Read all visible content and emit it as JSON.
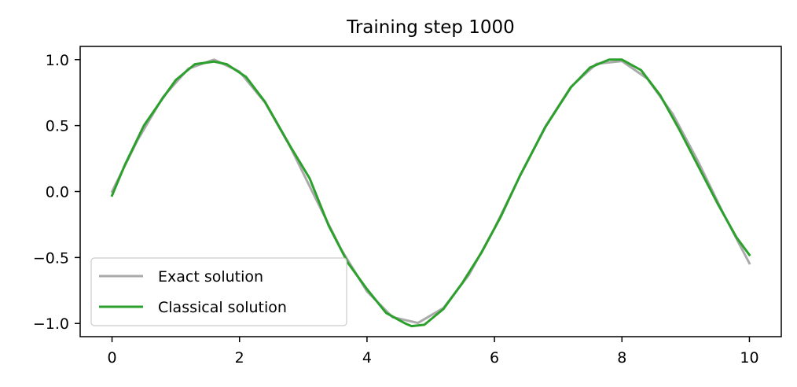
{
  "chart_data": {
    "type": "line",
    "title": "Training step 1000",
    "xlabel": "",
    "ylabel": "",
    "xlim": [
      -0.5,
      10.5
    ],
    "ylim": [
      -1.1,
      1.1
    ],
    "xticks": [
      0,
      2,
      4,
      6,
      8,
      10
    ],
    "yticks": [
      -1.0,
      -0.5,
      0.0,
      0.5,
      1.0
    ],
    "xtick_labels": [
      "0",
      "2",
      "4",
      "6",
      "8",
      "10"
    ],
    "ytick_labels": [
      "−1.0",
      "−0.5",
      "0.0",
      "0.5",
      "1.0"
    ],
    "grid": false,
    "legend": "lower-left",
    "series": [
      {
        "name": "Exact solution",
        "color": "#aaaaaa",
        "x": [
          0.0,
          0.4,
          0.8,
          1.2,
          1.6,
          2.0,
          2.4,
          2.8,
          3.2,
          3.6,
          4.0,
          4.4,
          4.8,
          5.2,
          5.6,
          6.0,
          6.4,
          6.8,
          7.2,
          7.6,
          8.0,
          8.4,
          8.8,
          9.2,
          9.6,
          10.0
        ],
        "y": [
          0.0,
          0.389,
          0.717,
          0.932,
          1.0,
          0.909,
          0.675,
          0.335,
          -0.058,
          -0.443,
          -0.757,
          -0.952,
          -0.996,
          -0.883,
          -0.631,
          -0.279,
          0.117,
          0.494,
          0.794,
          0.968,
          0.989,
          0.855,
          0.585,
          0.223,
          -0.175,
          -0.544
        ]
      },
      {
        "name": "Classical solution",
        "color": "#2ca02c",
        "x": [
          0.0,
          0.2,
          0.5,
          0.8,
          1.0,
          1.3,
          1.6,
          1.8,
          2.1,
          2.4,
          2.8,
          3.1,
          3.4,
          3.7,
          4.0,
          4.3,
          4.6,
          4.7,
          4.9,
          5.2,
          5.5,
          5.8,
          6.1,
          6.4,
          6.8,
          7.2,
          7.5,
          7.8,
          8.0,
          8.3,
          8.6,
          8.9,
          9.2,
          9.5,
          9.8,
          10.0
        ],
        "y": [
          -0.03,
          0.2,
          0.5,
          0.71,
          0.845,
          0.965,
          0.985,
          0.965,
          0.87,
          0.68,
          0.34,
          0.1,
          -0.26,
          -0.54,
          -0.74,
          -0.92,
          -1.0,
          -1.02,
          -1.01,
          -0.89,
          -0.69,
          -0.46,
          -0.19,
          0.12,
          0.49,
          0.79,
          0.94,
          1.0,
          1.0,
          0.92,
          0.73,
          0.47,
          0.19,
          -0.09,
          -0.35,
          -0.48
        ]
      }
    ]
  }
}
